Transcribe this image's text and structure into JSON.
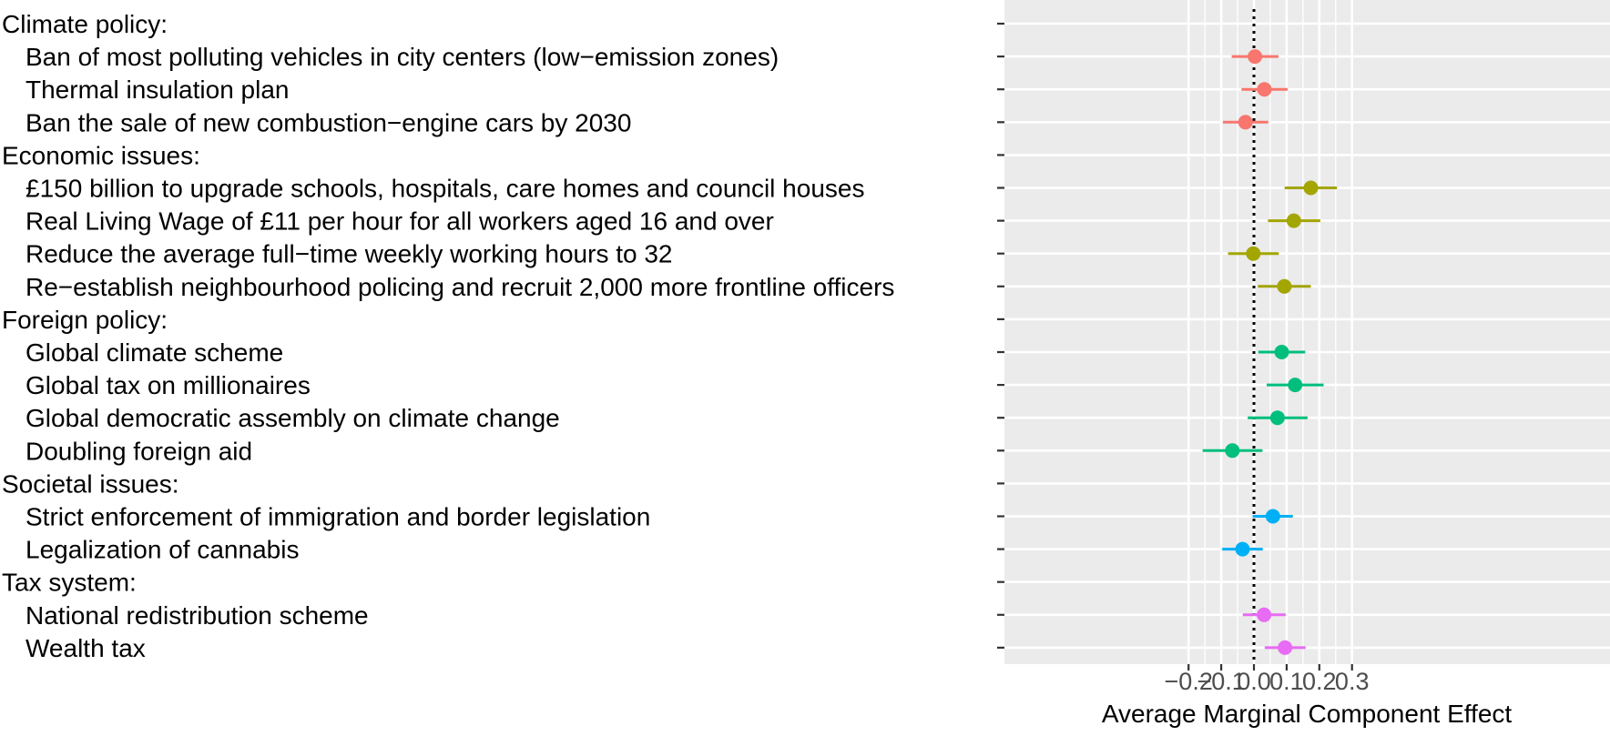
{
  "chart_data": {
    "type": "scatter",
    "subtype": "dot-and-whisker",
    "xlabel": "Average Marginal Component Effect",
    "xlim": [
      -0.225,
      0.32
    ],
    "xticks": [
      -0.2,
      -0.1,
      0.0,
      0.1,
      0.2,
      0.3
    ],
    "xtick_labels": [
      "−0.2",
      "−0.1",
      "0.0",
      "0.1",
      "0.2",
      "0.3"
    ],
    "reference_line": {
      "x": 0,
      "style": "dotted"
    },
    "grid": true,
    "background": "#ebebeb",
    "grid_color": "#ffffff",
    "series": [
      {
        "group": "Climate policy",
        "color": "#f8766d",
        "points": [
          {
            "label": "Ban of most polluting vehicles in city centers (low−emission zones)",
            "estimate": 0.003,
            "lower": -0.068,
            "upper": 0.075
          },
          {
            "label": "Thermal insulation plan",
            "estimate": 0.032,
            "lower": -0.038,
            "upper": 0.103
          },
          {
            "label": "Ban the sale of new combustion−engine cars by 2030",
            "estimate": -0.026,
            "lower": -0.095,
            "upper": 0.044
          }
        ]
      },
      {
        "group": "Economic issues",
        "color": "#a3a500",
        "points": [
          {
            "label": "£150 billion to upgrade schools, hospitals, care homes and council houses",
            "estimate": 0.174,
            "lower": 0.094,
            "upper": 0.254
          },
          {
            "label": "Real Living Wage of £11 per hour for all workers aged 16 and over",
            "estimate": 0.122,
            "lower": 0.043,
            "upper": 0.203
          },
          {
            "label": "Reduce the average full−time weekly working hours to 32",
            "estimate": -0.002,
            "lower": -0.079,
            "upper": 0.076
          },
          {
            "label": "Re−establish neighbourhood policing and recruit 2,000 more frontline officers",
            "estimate": 0.093,
            "lower": 0.012,
            "upper": 0.174
          }
        ]
      },
      {
        "group": "Foreign policy",
        "color": "#00bf7d",
        "points": [
          {
            "label": "Global climate scheme",
            "estimate": 0.085,
            "lower": 0.013,
            "upper": 0.157
          },
          {
            "label": "Global tax on millionaires",
            "estimate": 0.126,
            "lower": 0.039,
            "upper": 0.213
          },
          {
            "label": "Global democratic assembly on climate change",
            "estimate": 0.072,
            "lower": -0.019,
            "upper": 0.164
          },
          {
            "label": "Doubling foreign aid",
            "estimate": -0.066,
            "lower": -0.157,
            "upper": 0.026
          }
        ]
      },
      {
        "group": "Societal issues",
        "color": "#00b0f6",
        "points": [
          {
            "label": "Strict enforcement of immigration and border legislation",
            "estimate": 0.058,
            "lower": -0.004,
            "upper": 0.119
          },
          {
            "label": "Legalization of cannabis",
            "estimate": -0.035,
            "lower": -0.097,
            "upper": 0.027
          }
        ]
      },
      {
        "group": "Tax system",
        "color": "#e76bf3",
        "points": [
          {
            "label": "National redistribution scheme",
            "estimate": 0.031,
            "lower": -0.034,
            "upper": 0.097
          },
          {
            "label": "Wealth tax",
            "estimate": 0.095,
            "lower": 0.033,
            "upper": 0.158
          }
        ]
      }
    ],
    "rows": [
      {
        "kind": "header",
        "text": "Climate policy:"
      },
      {
        "kind": "item",
        "series": 0,
        "point": 0
      },
      {
        "kind": "item",
        "series": 0,
        "point": 1
      },
      {
        "kind": "item",
        "series": 0,
        "point": 2
      },
      {
        "kind": "header",
        "text": "Economic issues:"
      },
      {
        "kind": "item",
        "series": 1,
        "point": 0
      },
      {
        "kind": "item",
        "series": 1,
        "point": 1
      },
      {
        "kind": "item",
        "series": 1,
        "point": 2
      },
      {
        "kind": "item",
        "series": 1,
        "point": 3
      },
      {
        "kind": "header",
        "text": "Foreign policy:"
      },
      {
        "kind": "item",
        "series": 2,
        "point": 0
      },
      {
        "kind": "item",
        "series": 2,
        "point": 1
      },
      {
        "kind": "item",
        "series": 2,
        "point": 2
      },
      {
        "kind": "item",
        "series": 2,
        "point": 3
      },
      {
        "kind": "header",
        "text": "Societal issues:"
      },
      {
        "kind": "item",
        "series": 3,
        "point": 0
      },
      {
        "kind": "item",
        "series": 3,
        "point": 1
      },
      {
        "kind": "header",
        "text": "Tax system:"
      },
      {
        "kind": "item",
        "series": 4,
        "point": 0
      },
      {
        "kind": "item",
        "series": 4,
        "point": 1
      }
    ]
  }
}
